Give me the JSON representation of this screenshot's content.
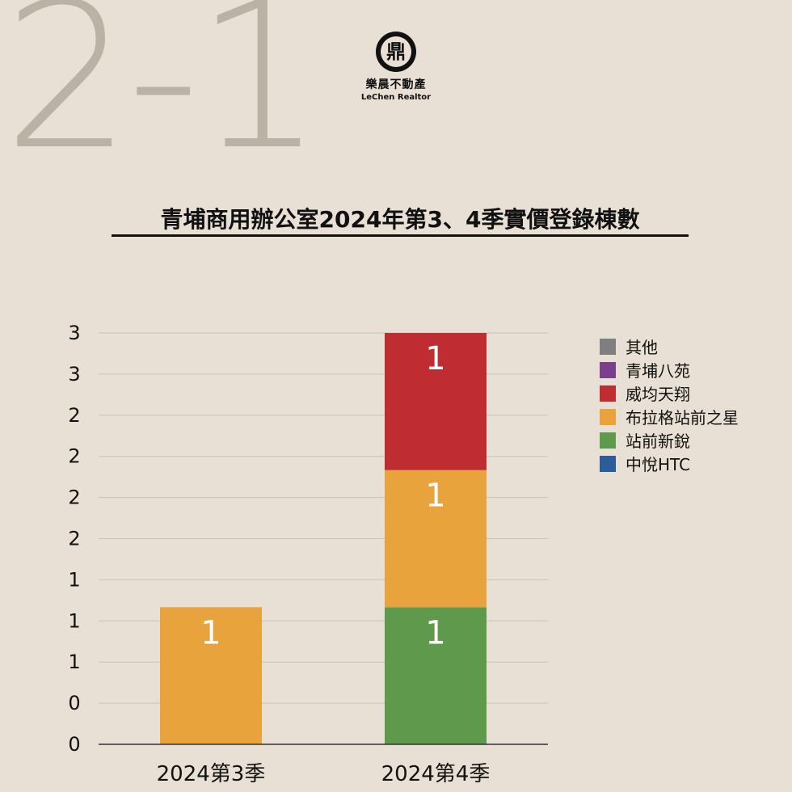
{
  "header": {
    "big_number": "2-1",
    "logo_glyph": "鼎",
    "logo_name_cn": "樂晨不動產",
    "logo_name_en": "LeChen Realtor"
  },
  "chart_data": {
    "type": "bar",
    "stacked": true,
    "title": "青埔商用辦公室2024年第3、4季實價登錄棟數",
    "xlabel": "",
    "ylabel": "",
    "categories": [
      "2024第3季",
      "2024第4季"
    ],
    "ylim": [
      0,
      3
    ],
    "y_ticks": [
      0,
      0.3,
      0.6,
      0.9,
      1.2,
      1.5,
      1.8,
      2.1,
      2.4,
      2.7,
      3.0
    ],
    "y_tick_labels": [
      "0",
      "0",
      "1",
      "1",
      "1",
      "2",
      "2",
      "2",
      "2",
      "3",
      "3"
    ],
    "grid": true,
    "legend_position": "right",
    "series": [
      {
        "name": "中悅HTC",
        "color": "#2d5d99",
        "values": [
          0,
          0
        ]
      },
      {
        "name": "站前新銳",
        "color": "#5f9a4c",
        "values": [
          0,
          1
        ]
      },
      {
        "name": "布拉格站前之星",
        "color": "#e8a33d",
        "values": [
          1,
          1
        ]
      },
      {
        "name": "威均天翔",
        "color": "#bf2c31",
        "values": [
          0,
          1
        ]
      },
      {
        "name": "青埔八苑",
        "color": "#7b3f8c",
        "values": [
          0,
          0
        ]
      },
      {
        "name": "其他",
        "color": "#7f7f7f",
        "values": [
          0,
          0
        ]
      }
    ],
    "legend_order": [
      "其他",
      "青埔八苑",
      "威均天翔",
      "布拉格站前之星",
      "站前新銳",
      "中悅HTC"
    ]
  }
}
